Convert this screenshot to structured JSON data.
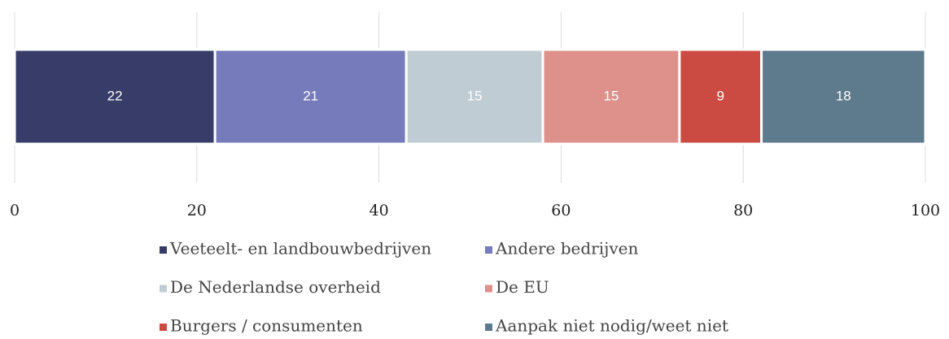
{
  "chart_data": {
    "type": "bar",
    "orientation": "horizontal",
    "stacked": true,
    "categories": [
      null
    ],
    "series": [
      {
        "name": "Veeteelt- en landbouwbedrijven",
        "color": "#383c68",
        "values": [
          22
        ]
      },
      {
        "name": "Andere bedrijven",
        "color": "#767bbb",
        "values": [
          21
        ]
      },
      {
        "name": "De Nederlandse overheid",
        "color": "#bfccd4",
        "values": [
          15
        ]
      },
      {
        "name": "De EU",
        "color": "#de918b",
        "values": [
          15
        ]
      },
      {
        "name": "Burgers / consumenten",
        "color": "#cb4b43",
        "values": [
          9
        ]
      },
      {
        "name": "Aanpak niet nodig/weet niet",
        "color": "#5e7a8d",
        "values": [
          18
        ]
      }
    ],
    "xlim": [
      0,
      100
    ],
    "xticks": [
      0,
      20,
      40,
      60,
      80,
      100
    ],
    "grid": true,
    "legend": "bottom"
  }
}
